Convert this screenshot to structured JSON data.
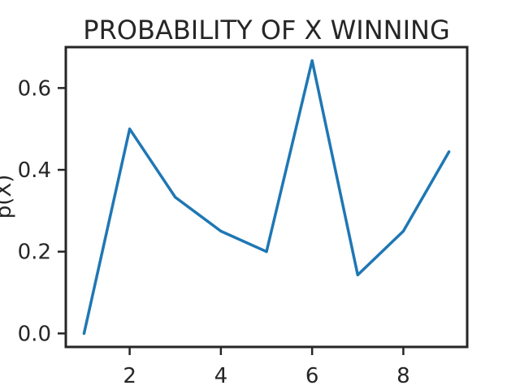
{
  "chart_data": {
    "type": "line",
    "title": "PROBABILITY OF X WINNING",
    "xlabel": "",
    "ylabel": "p(X)",
    "x": [
      1,
      2,
      3,
      4,
      5,
      6,
      7,
      8,
      9
    ],
    "series": [
      {
        "values": [
          0.0,
          0.5,
          0.333,
          0.25,
          0.2,
          0.667,
          0.143,
          0.25,
          0.444
        ]
      }
    ],
    "xlim": [
      0.6,
      9.4
    ],
    "ylim": [
      -0.033,
      0.7
    ],
    "xticks": [
      2,
      4,
      6,
      8
    ],
    "xtick_labels": [
      "2",
      "4",
      "6",
      "8"
    ],
    "yticks": [
      0.0,
      0.2,
      0.4,
      0.6
    ],
    "ytick_labels": [
      "0.0",
      "0.2",
      "0.4",
      "0.6"
    ],
    "grid": false,
    "legend": "none",
    "colors": {
      "line": "#1f77b4",
      "axes": "#262626",
      "background": "#ffffff"
    }
  }
}
